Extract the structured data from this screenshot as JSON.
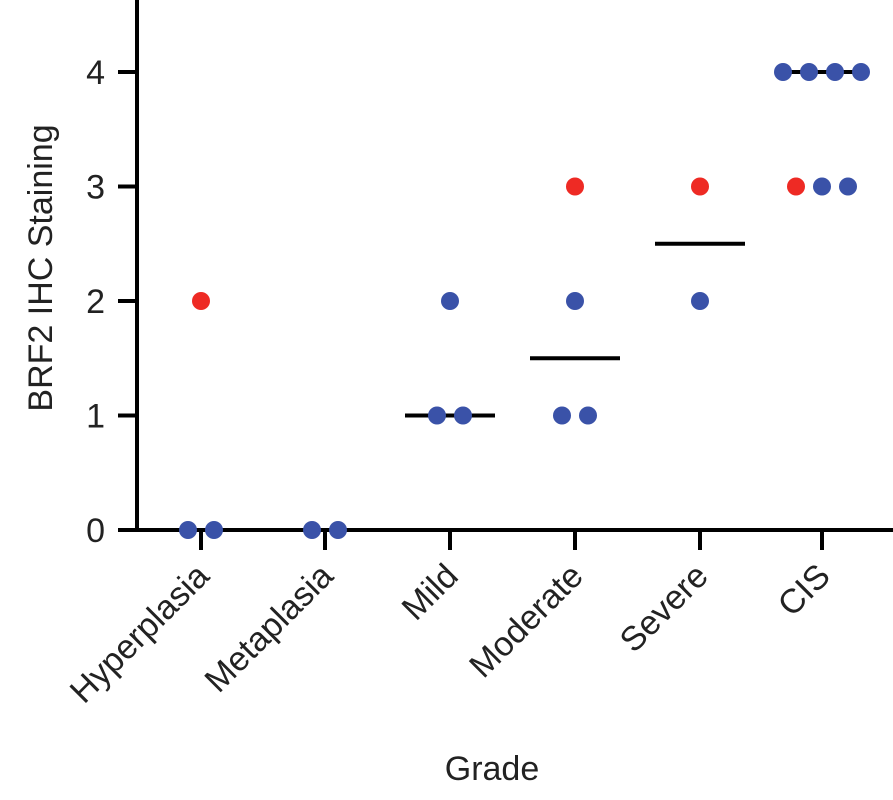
{
  "chart_data": {
    "type": "scatter",
    "title": "",
    "xlabel": "Grade",
    "ylabel": "BRF2 IHC Staining",
    "categories": [
      "Hyperplasia",
      "Metaplasia",
      "Mild",
      "Moderate",
      "Severe",
      "CIS"
    ],
    "yticks": [
      "0",
      "1",
      "2",
      "3",
      "4"
    ],
    "ylim": [
      0,
      4.6
    ],
    "grid": false,
    "legend": "none",
    "colors": {
      "red": "#ee2a24",
      "blue": "#3a52a8",
      "median": "#000000"
    },
    "points": [
      {
        "category": "Hyperplasia",
        "y": 2,
        "color": "red"
      },
      {
        "category": "Hyperplasia",
        "y": 0,
        "color": "blue"
      },
      {
        "category": "Hyperplasia",
        "y": 0,
        "color": "blue"
      },
      {
        "category": "Metaplasia",
        "y": 0,
        "color": "blue"
      },
      {
        "category": "Metaplasia",
        "y": 0,
        "color": "blue"
      },
      {
        "category": "Mild",
        "y": 2,
        "color": "blue"
      },
      {
        "category": "Mild",
        "y": 1,
        "color": "blue"
      },
      {
        "category": "Mild",
        "y": 1,
        "color": "blue"
      },
      {
        "category": "Moderate",
        "y": 3,
        "color": "red"
      },
      {
        "category": "Moderate",
        "y": 2,
        "color": "blue"
      },
      {
        "category": "Moderate",
        "y": 1,
        "color": "blue"
      },
      {
        "category": "Moderate",
        "y": 1,
        "color": "blue"
      },
      {
        "category": "Severe",
        "y": 3,
        "color": "red"
      },
      {
        "category": "Severe",
        "y": 2,
        "color": "blue"
      },
      {
        "category": "CIS",
        "y": 4,
        "color": "blue"
      },
      {
        "category": "CIS",
        "y": 4,
        "color": "blue"
      },
      {
        "category": "CIS",
        "y": 4,
        "color": "blue"
      },
      {
        "category": "CIS",
        "y": 4,
        "color": "blue"
      },
      {
        "category": "CIS",
        "y": 3,
        "color": "red"
      },
      {
        "category": "CIS",
        "y": 3,
        "color": "blue"
      },
      {
        "category": "CIS",
        "y": 3,
        "color": "blue"
      }
    ],
    "medians": [
      {
        "category": "Mild",
        "y": 1
      },
      {
        "category": "Moderate",
        "y": 1.5
      },
      {
        "category": "Severe",
        "y": 2.5
      },
      {
        "category": "CIS",
        "y": 4
      }
    ]
  }
}
